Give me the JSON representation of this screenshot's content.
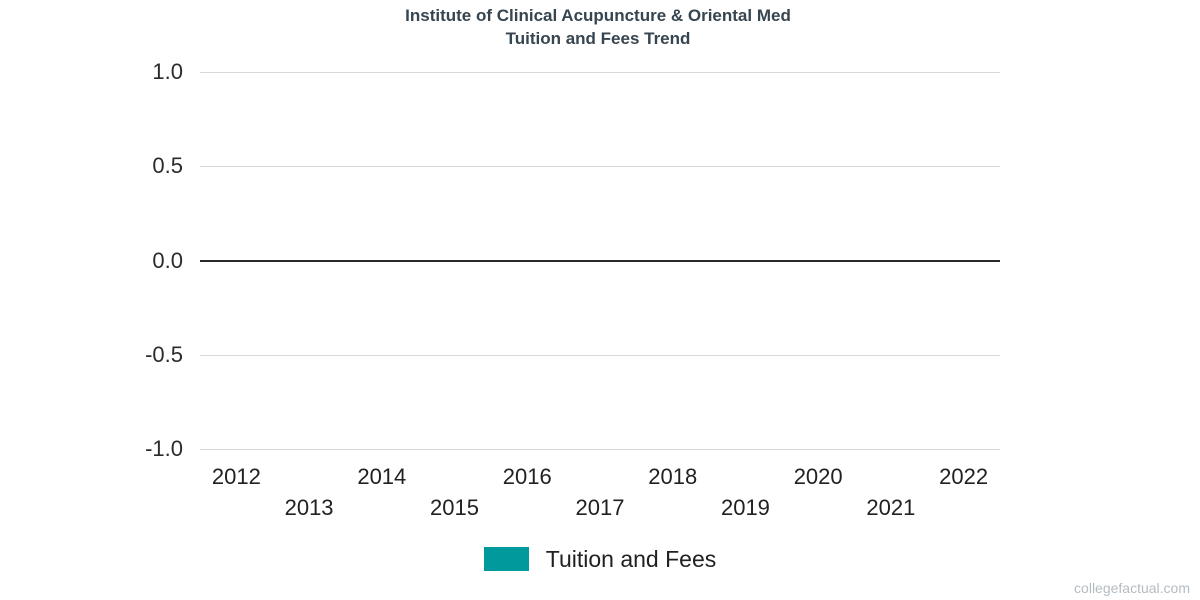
{
  "page": {
    "background": "#ffffff",
    "watermark": "collegefactual.com"
  },
  "chart_data": {
    "type": "line",
    "title": "Institute of Clinical Acupuncture & Oriental Med",
    "subtitle": "Tuition and Fees Trend",
    "categories": [
      "2012",
      "2013",
      "2014",
      "2015",
      "2016",
      "2017",
      "2018",
      "2019",
      "2020",
      "2021",
      "2022"
    ],
    "series": [
      {
        "name": "Tuition and Fees",
        "color": "#009a9c",
        "values": []
      }
    ],
    "xlabel": "",
    "ylabel": "",
    "ylim": [
      -1.0,
      1.0
    ],
    "ytick_labels": [
      "1.0",
      "0.5",
      "0.0",
      "-0.5",
      "-1.0"
    ],
    "ytick_values": [
      1.0,
      0.5,
      0.0,
      -0.5,
      -1.0
    ],
    "grid": true,
    "zero_line": true,
    "legend_position": "bottom",
    "colors": {
      "series_teal": "#009a9c",
      "gridline": "#d8d8d8",
      "zero_line": "#2a2a2a",
      "title_text": "#36454f",
      "tick_text": "#212121",
      "watermark_text": "#b4bcc3"
    }
  }
}
